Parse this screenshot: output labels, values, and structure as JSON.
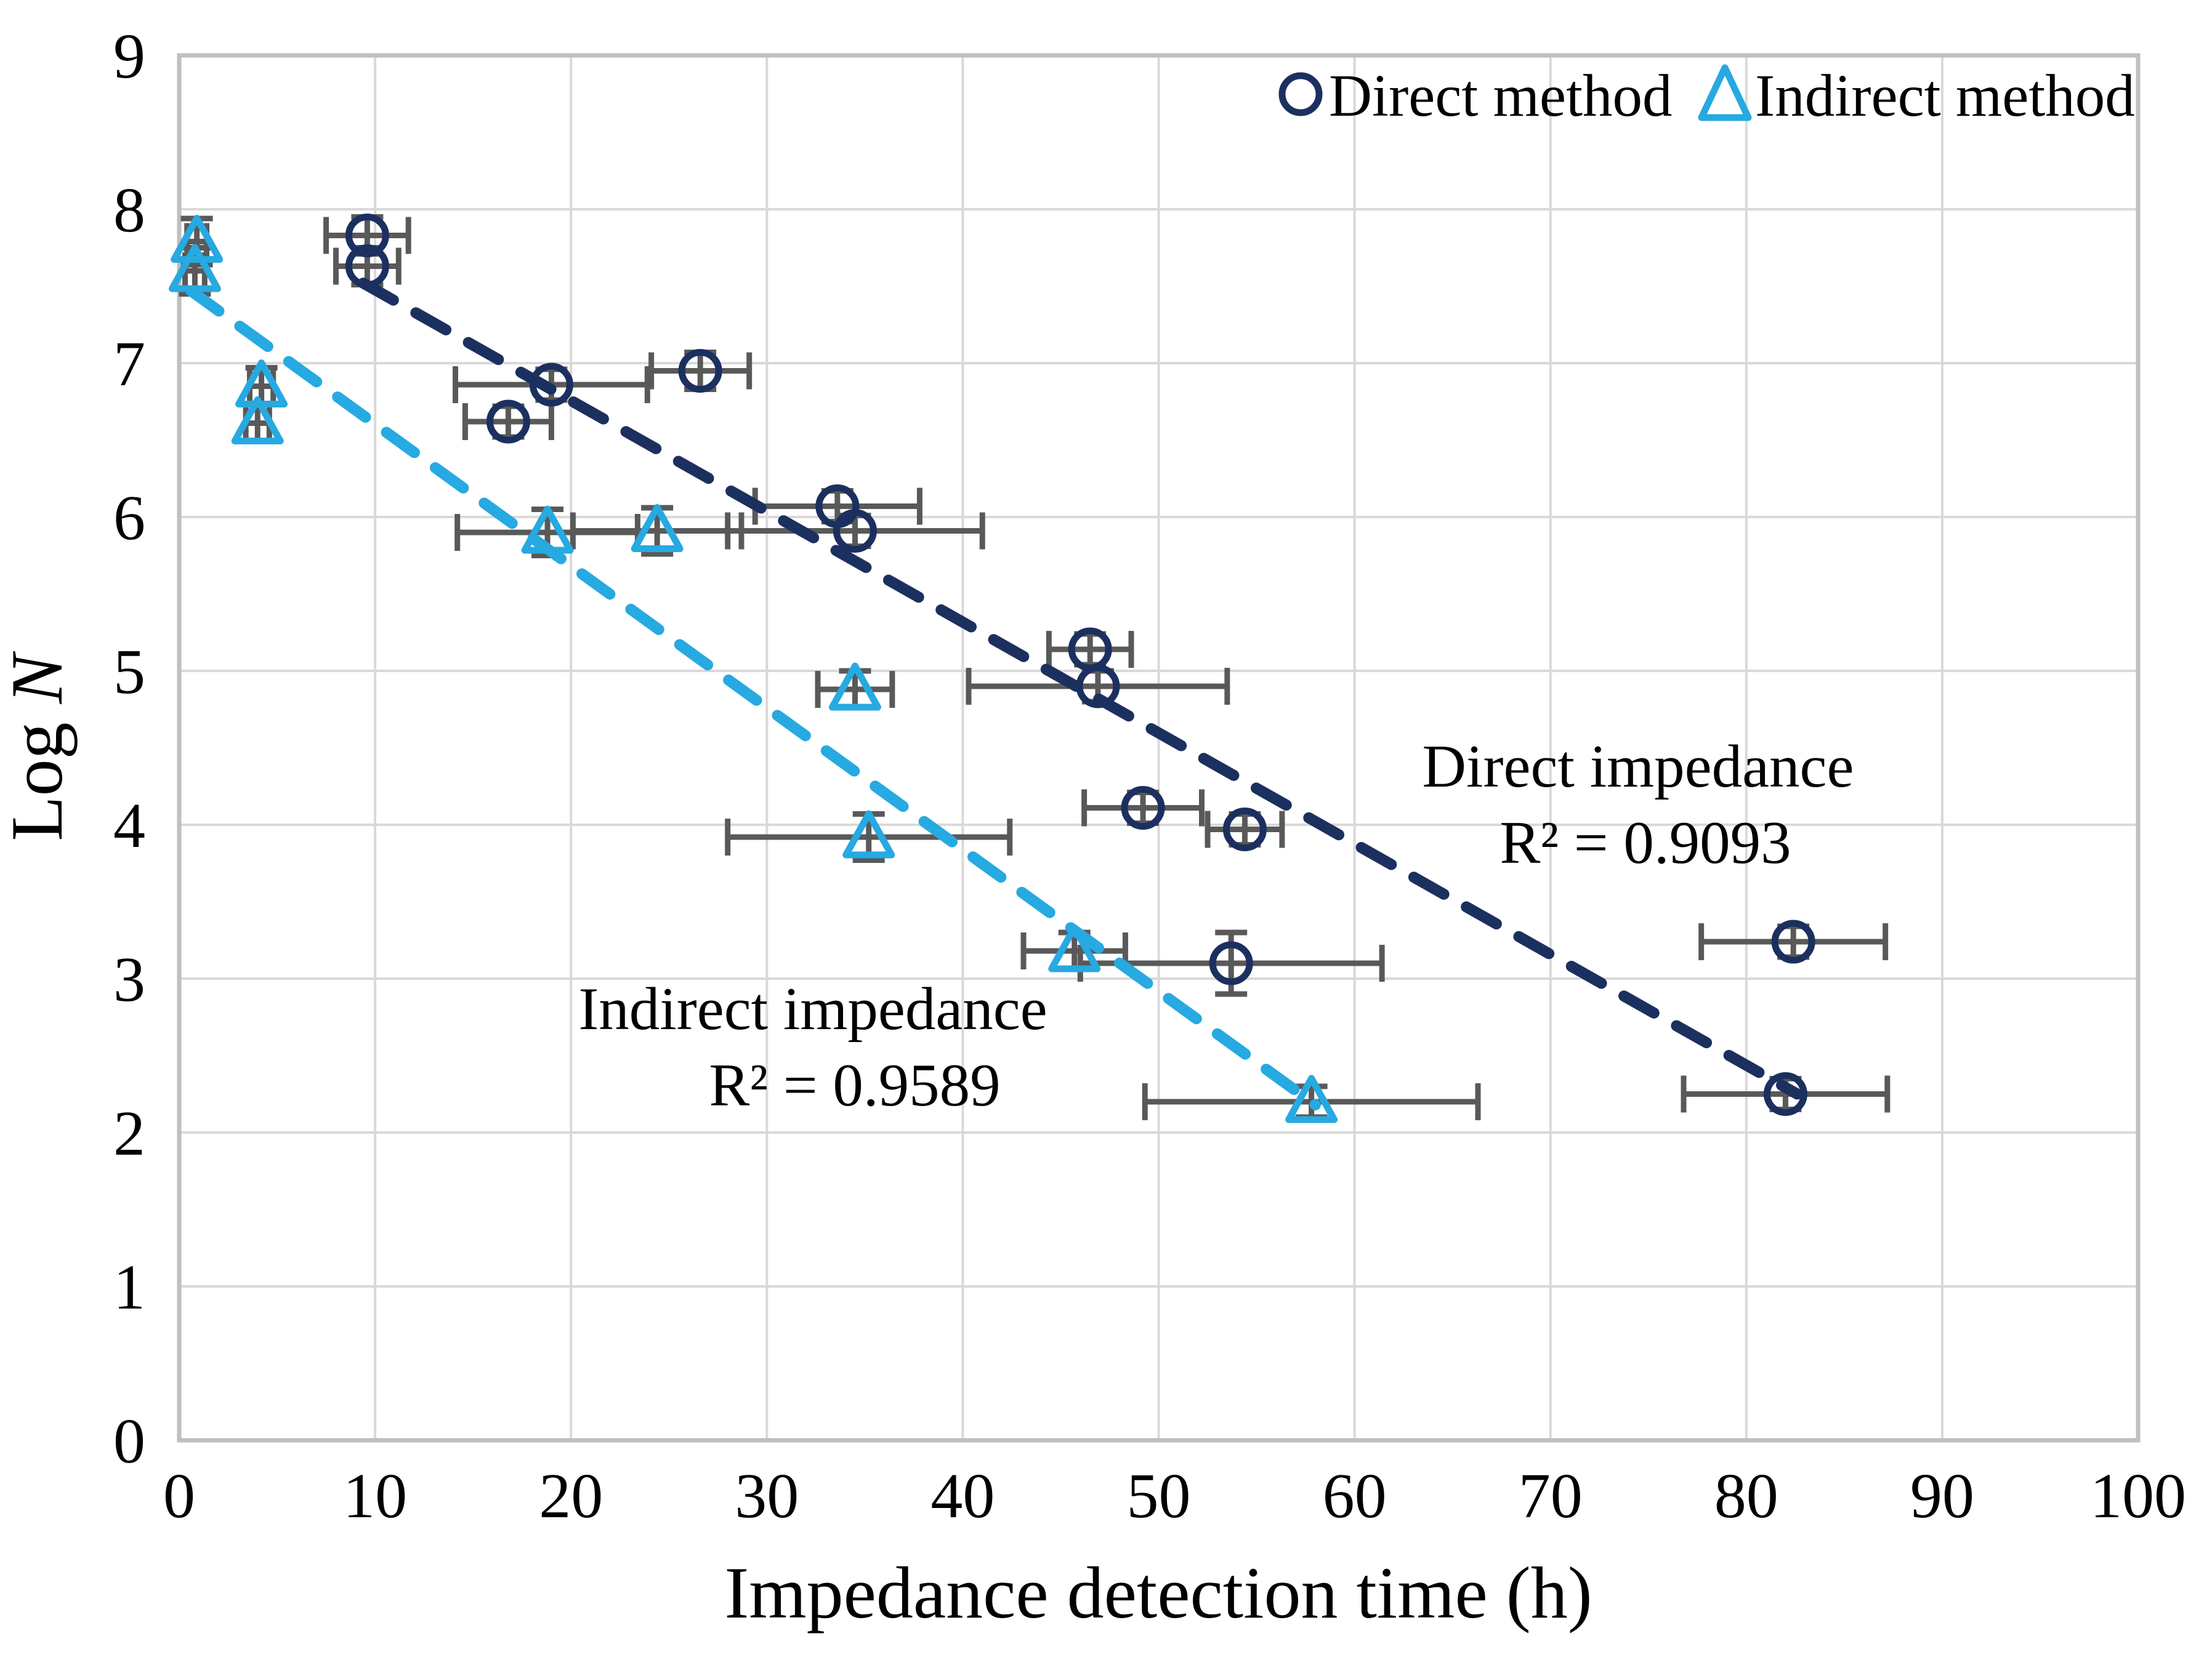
{
  "colors": {
    "direct": "#1b305f",
    "indirect": "#27a9e1",
    "error_bar": "#595959",
    "gridline": "#d9d9d9",
    "plot_border": "#bfbfbf",
    "text": "#000000"
  },
  "legend": {
    "direct_label": "Direct method",
    "indirect_label": "Indirect method",
    "direct_marker": "circle-outline-icon",
    "indirect_marker": "triangle-outline-icon"
  },
  "axes": {
    "x_title": "Impedance detection time (h)",
    "y_title_prefix": "Log ",
    "y_title_var": "N",
    "x_ticks": [
      0,
      10,
      20,
      30,
      40,
      50,
      60,
      70,
      80,
      90,
      100
    ],
    "y_ticks": [
      0,
      1,
      2,
      3,
      4,
      5,
      6,
      7,
      8,
      9
    ],
    "x_range": [
      0,
      100
    ],
    "y_range": [
      0,
      9
    ],
    "grid": "on"
  },
  "annotations": {
    "direct_line1": "Direct impedance",
    "direct_line2": "R² = 0.9093",
    "indirect_line1": "Indirect impedance",
    "indirect_line2": "R² = 0.9589"
  },
  "chart_data": {
    "type": "scatter",
    "title": "",
    "xlabel": "Impedance detection time (h)",
    "ylabel": "Log N",
    "xlim": [
      0,
      100
    ],
    "ylim": [
      0,
      9
    ],
    "legend_position": "top-right-inside",
    "series": [
      {
        "name": "Direct method",
        "marker": "circle",
        "color": "#1b305f",
        "r2": 0.9093,
        "trend": {
          "x1": 9.4,
          "y1": 7.52,
          "x2": 82.6,
          "y2": 2.25
        },
        "points": [
          {
            "x": 9.6,
            "y": 7.83,
            "xerr": 2.1,
            "yerr": 0.12
          },
          {
            "x": 9.6,
            "y": 7.63,
            "xerr": 1.6,
            "yerr": 0.12
          },
          {
            "x": 26.6,
            "y": 6.95,
            "xerr": 2.5,
            "yerr": 0.12
          },
          {
            "x": 19.0,
            "y": 6.86,
            "xerr": 4.9,
            "yerr": 0.1
          },
          {
            "x": 16.8,
            "y": 6.62,
            "xerr": 2.2,
            "yerr": 0.1
          },
          {
            "x": 33.6,
            "y": 6.07,
            "xerr": 4.2,
            "yerr": 0.1
          },
          {
            "x": 34.5,
            "y": 5.91,
            "xerr": 6.5,
            "yerr": 0.1
          },
          {
            "x": 46.5,
            "y": 5.14,
            "xerr": 2.1,
            "yerr": 0.1
          },
          {
            "x": 46.9,
            "y": 4.9,
            "xerr": 6.6,
            "yerr": 0.1
          },
          {
            "x": 49.2,
            "y": 4.11,
            "xerr": 3.0,
            "yerr": 0.1
          },
          {
            "x": 54.4,
            "y": 3.97,
            "xerr": 1.9,
            "yerr": 0.1
          },
          {
            "x": 53.7,
            "y": 3.1,
            "xerr": 7.7,
            "yerr": 0.2
          },
          {
            "x": 82.4,
            "y": 3.24,
            "xerr": 4.7,
            "yerr": 0.1
          },
          {
            "x": 82.0,
            "y": 2.25,
            "xerr": 5.2,
            "yerr": 0.1
          }
        ]
      },
      {
        "name": "Indirect method",
        "marker": "triangle",
        "color": "#27a9e1",
        "r2": 0.9589,
        "trend": {
          "x1": 0.6,
          "y1": 7.47,
          "x2": 58.0,
          "y2": 2.18
        },
        "points": [
          {
            "x": 0.9,
            "y": 7.79,
            "xerr": 0.5,
            "yerr": 0.15
          },
          {
            "x": 0.8,
            "y": 7.6,
            "xerr": 0.5,
            "yerr": 0.15
          },
          {
            "x": 4.2,
            "y": 6.85,
            "xerr": 0.6,
            "yerr": 0.12
          },
          {
            "x": 4.0,
            "y": 6.61,
            "xerr": 0.6,
            "yerr": 0.12
          },
          {
            "x": 18.8,
            "y": 5.9,
            "xerr": 4.6,
            "yerr": 0.15
          },
          {
            "x": 24.4,
            "y": 5.91,
            "xerr": 4.3,
            "yerr": 0.15
          },
          {
            "x": 34.5,
            "y": 4.88,
            "xerr": 1.9,
            "yerr": 0.12
          },
          {
            "x": 35.2,
            "y": 3.92,
            "xerr": 7.2,
            "yerr": 0.15
          },
          {
            "x": 45.7,
            "y": 3.18,
            "xerr": 2.6,
            "yerr": 0.12
          },
          {
            "x": 57.8,
            "y": 2.2,
            "xerr": 8.5,
            "yerr": 0.1
          }
        ]
      }
    ]
  }
}
